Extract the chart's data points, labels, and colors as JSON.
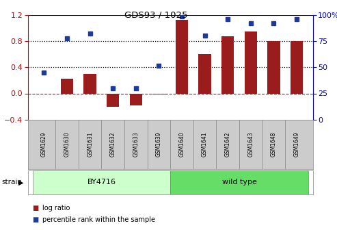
{
  "title": "GDS93 / 1025",
  "samples": [
    "GSM1629",
    "GSM1630",
    "GSM1631",
    "GSM1632",
    "GSM1633",
    "GSM1639",
    "GSM1640",
    "GSM1641",
    "GSM1642",
    "GSM1643",
    "GSM1648",
    "GSM1649"
  ],
  "log_ratio": [
    0.0,
    0.22,
    0.3,
    -0.2,
    -0.18,
    -0.02,
    1.12,
    0.6,
    0.87,
    0.95,
    0.8,
    0.8
  ],
  "percentile_left_scale": [
    0.32,
    0.84,
    0.92,
    0.08,
    0.08,
    0.42,
    1.18,
    0.88,
    1.14,
    1.07,
    1.07,
    1.14
  ],
  "bar_color": "#9B1C1C",
  "dot_color": "#1C3A9B",
  "strain_groups": [
    {
      "label": "BY4716",
      "start": 0,
      "end": 5,
      "color": "#ccffcc"
    },
    {
      "label": "wild type",
      "start": 6,
      "end": 11,
      "color": "#66dd66"
    }
  ],
  "ylim": [
    -0.4,
    1.2
  ],
  "yticks_left": [
    -0.4,
    0.0,
    0.4,
    0.8,
    1.2
  ],
  "yticks_right": [
    0,
    25,
    50,
    75,
    100
  ],
  "ylabel_left_color": "#cc0000",
  "ylabel_right_color": "#0000cc",
  "dotted_lines": [
    0.4,
    0.8
  ],
  "zero_line_color": "#cc0000",
  "tick_area_color": "#cccccc",
  "strain_bg_color": "#f0f0f0"
}
